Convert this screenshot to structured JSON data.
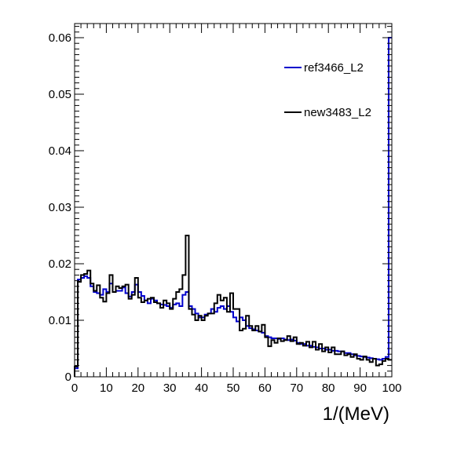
{
  "chart_data": {
    "type": "line",
    "style": "step-histogram",
    "title": "",
    "xlabel": "1/(MeV)",
    "ylabel": "",
    "xlim": [
      0,
      100
    ],
    "ylim": [
      0,
      0.0625
    ],
    "xticks": [
      0,
      10,
      20,
      30,
      40,
      50,
      60,
      70,
      80,
      90,
      100
    ],
    "xtick_labels": [
      "0",
      "10",
      "20",
      "30",
      "40",
      "50",
      "60",
      "70",
      "80",
      "90",
      "100"
    ],
    "yticks": [
      0,
      0.01,
      0.02,
      0.03,
      0.04,
      0.05,
      0.06
    ],
    "ytick_labels": [
      "0",
      "0.01",
      "0.02",
      "0.03",
      "0.04",
      "0.05",
      "0.06"
    ],
    "grid": false,
    "legend_position": "top-right",
    "bin_edges": [
      0,
      1,
      2,
      3,
      4,
      5,
      6,
      7,
      8,
      9,
      10,
      11,
      12,
      13,
      14,
      15,
      16,
      17,
      18,
      19,
      20,
      21,
      22,
      23,
      24,
      25,
      26,
      27,
      28,
      29,
      30,
      31,
      32,
      33,
      34,
      35,
      36,
      37,
      38,
      39,
      40,
      41,
      42,
      43,
      44,
      45,
      46,
      47,
      48,
      49,
      50,
      51,
      52,
      53,
      54,
      55,
      56,
      57,
      58,
      59,
      60,
      61,
      62,
      63,
      64,
      65,
      66,
      67,
      68,
      69,
      70,
      71,
      72,
      73,
      74,
      75,
      76,
      77,
      78,
      79,
      80,
      81,
      82,
      83,
      84,
      85,
      86,
      87,
      88,
      89,
      90,
      91,
      92,
      93,
      94,
      95,
      96,
      97,
      98,
      99,
      100
    ],
    "series": [
      {
        "name": "ref3466_L2",
        "color": "#0000cc",
        "values": [
          0.0015,
          0.0172,
          0.0175,
          0.0178,
          0.0175,
          0.016,
          0.015,
          0.0148,
          0.0145,
          0.0155,
          0.015,
          0.0165,
          0.015,
          0.0152,
          0.0152,
          0.0158,
          0.0148,
          0.0142,
          0.015,
          0.0163,
          0.015,
          0.0143,
          0.0135,
          0.013,
          0.0138,
          0.0135,
          0.013,
          0.0128,
          0.0127,
          0.0125,
          0.0122,
          0.0128,
          0.013,
          0.0125,
          0.0145,
          0.015,
          0.0125,
          0.012,
          0.0112,
          0.0105,
          0.0105,
          0.011,
          0.0112,
          0.012,
          0.0115,
          0.0122,
          0.0125,
          0.012,
          0.0125,
          0.0115,
          0.0105,
          0.0098,
          0.0105,
          0.01,
          0.009,
          0.0086,
          0.0084,
          0.0082,
          0.008,
          0.0078,
          0.0072,
          0.007,
          0.0068,
          0.0068,
          0.0067,
          0.0068,
          0.0066,
          0.0065,
          0.0066,
          0.0064,
          0.006,
          0.0058,
          0.0058,
          0.0055,
          0.0055,
          0.0053,
          0.0052,
          0.005,
          0.005,
          0.0048,
          0.0048,
          0.0046,
          0.0046,
          0.0045,
          0.0045,
          0.0042,
          0.0042,
          0.004,
          0.0038,
          0.0037,
          0.0036,
          0.0035,
          0.0034,
          0.0033,
          0.0032,
          0.0031,
          0.003,
          0.0032,
          0.0035,
          0.06
        ]
      },
      {
        "name": "new3483_L2",
        "color": "#000000",
        "values": [
          0.0018,
          0.0168,
          0.018,
          0.0182,
          0.0188,
          0.0165,
          0.0152,
          0.0162,
          0.014,
          0.0133,
          0.0148,
          0.018,
          0.015,
          0.016,
          0.0157,
          0.016,
          0.0163,
          0.0138,
          0.0145,
          0.0175,
          0.014,
          0.0132,
          0.0135,
          0.0138,
          0.014,
          0.0132,
          0.013,
          0.0122,
          0.0135,
          0.013,
          0.012,
          0.0138,
          0.015,
          0.0155,
          0.018,
          0.025,
          0.012,
          0.011,
          0.01,
          0.0108,
          0.01,
          0.0108,
          0.0112,
          0.0112,
          0.013,
          0.0145,
          0.0135,
          0.014,
          0.0115,
          0.0148,
          0.012,
          0.012,
          0.0082,
          0.0085,
          0.0108,
          0.009,
          0.0082,
          0.009,
          0.008,
          0.0092,
          0.007,
          0.0054,
          0.0065,
          0.006,
          0.0068,
          0.0063,
          0.0065,
          0.0072,
          0.0063,
          0.007,
          0.0058,
          0.006,
          0.0055,
          0.0062,
          0.0052,
          0.0062,
          0.0048,
          0.0058,
          0.0045,
          0.0052,
          0.0043,
          0.0052,
          0.004,
          0.004,
          0.0045,
          0.0038,
          0.004,
          0.0035,
          0.004,
          0.0032,
          0.003,
          0.0036,
          0.003,
          0.0026,
          0.0032,
          0.002,
          0.0022,
          0.0028,
          0.0032,
          0.003
        ]
      }
    ]
  }
}
